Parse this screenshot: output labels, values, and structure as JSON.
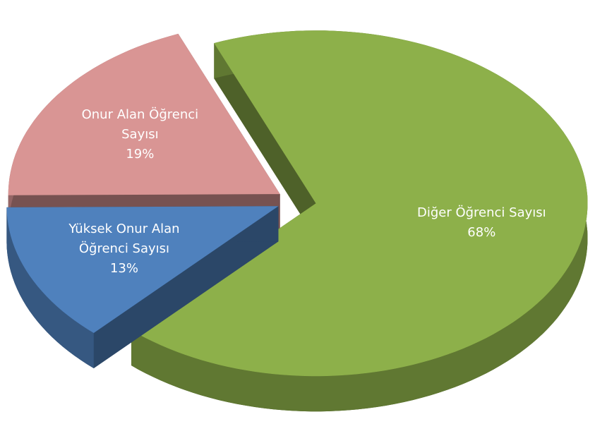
{
  "chart_data": {
    "type": "pie",
    "categories": [
      "Diğer Öğrenci Sayısı",
      "Yüksek Onur Alan Öğrenci Sayısı",
      "Onur Alan Öğrenci Sayısı"
    ],
    "values": [
      68,
      13,
      19
    ],
    "value_labels": [
      "68%",
      "13%",
      "19%"
    ],
    "colors": [
      "#8db04a",
      "#4f81bd",
      "#d99594"
    ]
  }
}
